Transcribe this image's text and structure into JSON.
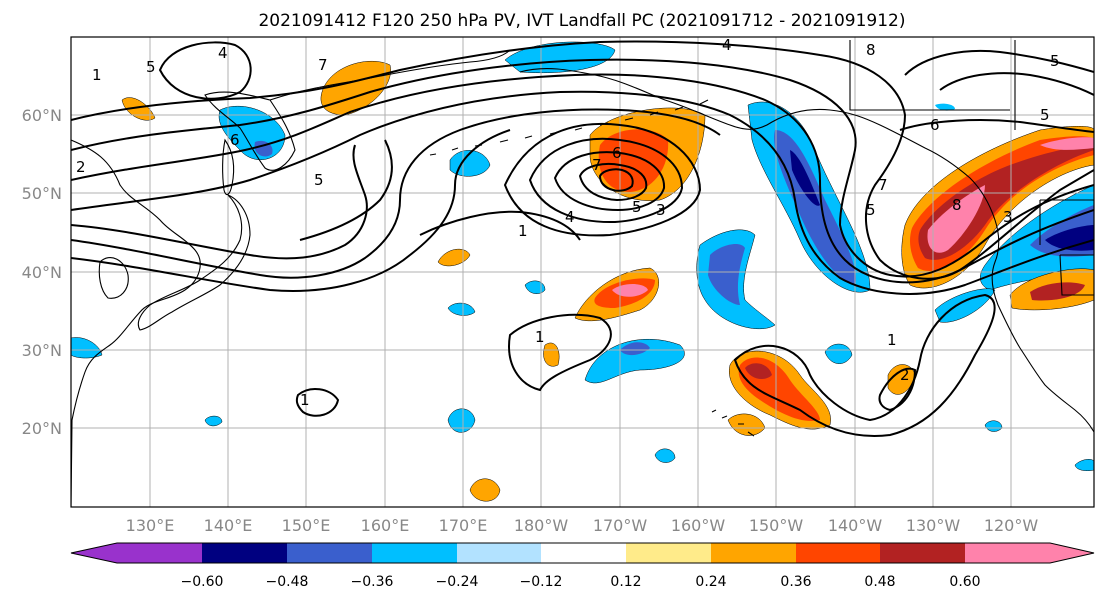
{
  "title": "2021091412 F120 250 hPa PV, IVT Landfall PC (2021091712 - 2021091912)",
  "map": {
    "lon_ticks": [
      "130°E",
      "140°E",
      "150°E",
      "160°E",
      "170°E",
      "180°W",
      "170°W",
      "160°W",
      "150°W",
      "140°W",
      "130°W",
      "120°W"
    ],
    "lat_ticks": [
      "60°N",
      "50°N",
      "40°N",
      "30°N",
      "20°N"
    ],
    "contour_labels": [
      "4",
      "5",
      "7",
      "4",
      "5",
      "2",
      "5",
      "8",
      "1",
      "6",
      "6",
      "5",
      "7",
      "5",
      "3",
      "1",
      "4",
      "5",
      "6",
      "7",
      "8",
      "3",
      "1",
      "1",
      "2",
      "1"
    ]
  },
  "colorbar": {
    "ticks": [
      "−0.60",
      "−0.48",
      "−0.36",
      "−0.24",
      "−0.12",
      "0.12",
      "0.24",
      "0.36",
      "0.48",
      "0.60"
    ],
    "colors": [
      "#9932cc",
      "#000080",
      "#3a5fcd",
      "#00bfff",
      "#b2e2ff",
      "#ffffff",
      "#ffeb8a",
      "#ffa500",
      "#ff4500",
      "#b22222",
      "#ff82ab"
    ]
  }
}
